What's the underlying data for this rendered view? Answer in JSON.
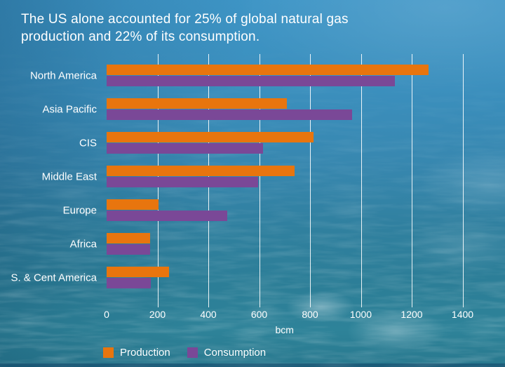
{
  "title": {
    "text": "The US alone accounted for 25% of global natural gas production and 22% of its consumption."
  },
  "colors": {
    "production": "#E8750E",
    "consumption": "#7A4897",
    "text": "#FFFFFF",
    "gridline": "rgba(255,255,255,0.9)",
    "background_top": "#3E95C6",
    "background_bottom": "#28788E"
  },
  "chart_data": {
    "type": "bar",
    "orientation": "horizontal",
    "title": "The US alone accounted for 25% of global natural gas production and 22% of its consumption.",
    "categories": [
      "North America",
      "Asia Pacific",
      "CIS",
      "Middle East",
      "Europe",
      "Africa",
      "S. & Cent America"
    ],
    "series": [
      {
        "name": "Production",
        "color": "#E8750E",
        "values": [
          1265,
          710,
          815,
          740,
          205,
          170,
          245
        ]
      },
      {
        "name": "Consumption",
        "color": "#7A4897",
        "values": [
          1135,
          965,
          615,
          595,
          475,
          170,
          175
        ]
      }
    ],
    "xlabel": "bcm",
    "xlim": [
      0,
      1400
    ],
    "xticks": [
      0,
      200,
      400,
      600,
      800,
      1000,
      1200,
      1400
    ],
    "grid": true,
    "legend_position": "bottom"
  }
}
